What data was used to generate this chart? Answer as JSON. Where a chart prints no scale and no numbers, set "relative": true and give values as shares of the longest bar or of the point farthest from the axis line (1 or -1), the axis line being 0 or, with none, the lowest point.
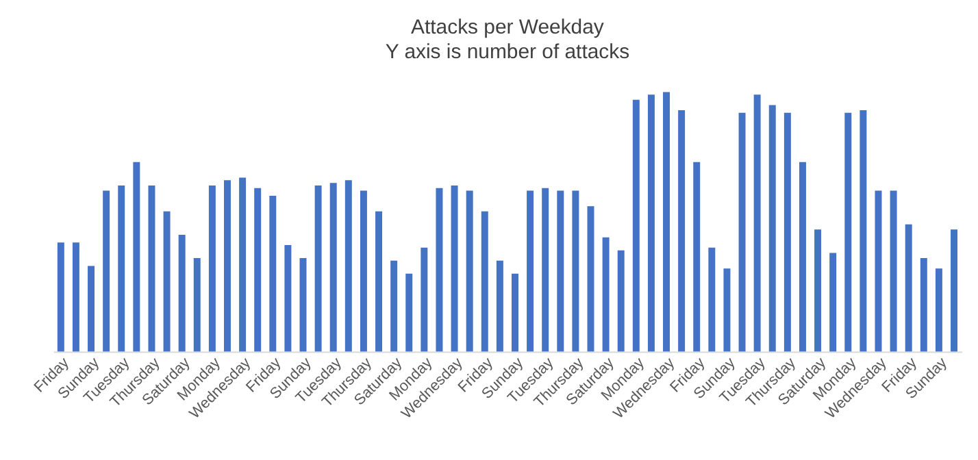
{
  "chart_data": {
    "type": "bar",
    "title": "Attacks per Weekday",
    "subtitle": "Y axis is number of attacks",
    "relative": true,
    "color": "#4472c4",
    "grid": false,
    "categories": [
      "Friday",
      null,
      "Sunday",
      null,
      "Tuesday",
      null,
      "Thursday",
      null,
      "Saturday",
      null,
      "Monday",
      null,
      "Wednesday",
      null,
      "Friday",
      null,
      "Sunday",
      null,
      "Tuesday",
      null,
      "Thursday",
      null,
      "Saturday",
      null,
      "Monday",
      null,
      "Wednesday",
      null,
      "Friday",
      null,
      "Sunday",
      null,
      "Tuesday",
      null,
      "Thursday",
      null,
      "Saturday",
      null,
      "Monday",
      null,
      "Wednesday",
      null,
      "Friday",
      null,
      "Sunday",
      null,
      "Tuesday",
      null,
      "Thursday",
      null,
      "Saturday",
      null,
      "Monday",
      null,
      "Wednesday",
      null,
      "Friday",
      null,
      "Sunday",
      null
    ],
    "values": [
      0.42,
      0.42,
      0.33,
      0.62,
      0.64,
      0.73,
      0.64,
      0.54,
      0.45,
      0.36,
      0.64,
      0.66,
      0.67,
      0.63,
      0.6,
      0.41,
      0.36,
      0.64,
      0.65,
      0.66,
      0.62,
      0.54,
      0.35,
      0.3,
      0.4,
      0.63,
      0.64,
      0.62,
      0.54,
      0.35,
      0.3,
      0.62,
      0.63,
      0.62,
      0.62,
      0.56,
      0.44,
      0.39,
      0.97,
      0.99,
      1,
      0.93,
      0.73,
      0.4,
      0.32,
      0.92,
      0.99,
      0.95,
      0.92,
      0.73,
      0.47,
      0.38,
      0.92,
      0.93,
      0.62,
      0.62,
      0.49,
      0.36,
      0.32,
      0.47
    ]
  }
}
